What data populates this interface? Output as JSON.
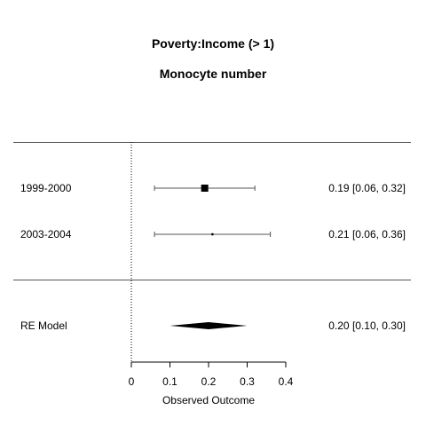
{
  "chart_data": {
    "type": "forest",
    "title": "Poverty:Income (> 1)",
    "subtitle": "Monocyte number",
    "xlabel": "Observed Outcome",
    "xlim": [
      0,
      0.4
    ],
    "xticks": [
      0,
      0.1,
      0.2,
      0.3,
      0.4
    ],
    "reference_line": 0,
    "studies": [
      {
        "label": "1999-2000",
        "estimate": 0.19,
        "lower": 0.06,
        "upper": 0.32,
        "text": "0.19 [0.06, 0.32]",
        "weight": "large"
      },
      {
        "label": "2003-2004",
        "estimate": 0.21,
        "lower": 0.06,
        "upper": 0.36,
        "text": "0.21 [0.06, 0.36]",
        "weight": "small"
      }
    ],
    "summary": {
      "label": "RE Model",
      "estimate": 0.2,
      "lower": 0.1,
      "upper": 0.3,
      "text": "0.20 [0.10, 0.30]"
    }
  }
}
